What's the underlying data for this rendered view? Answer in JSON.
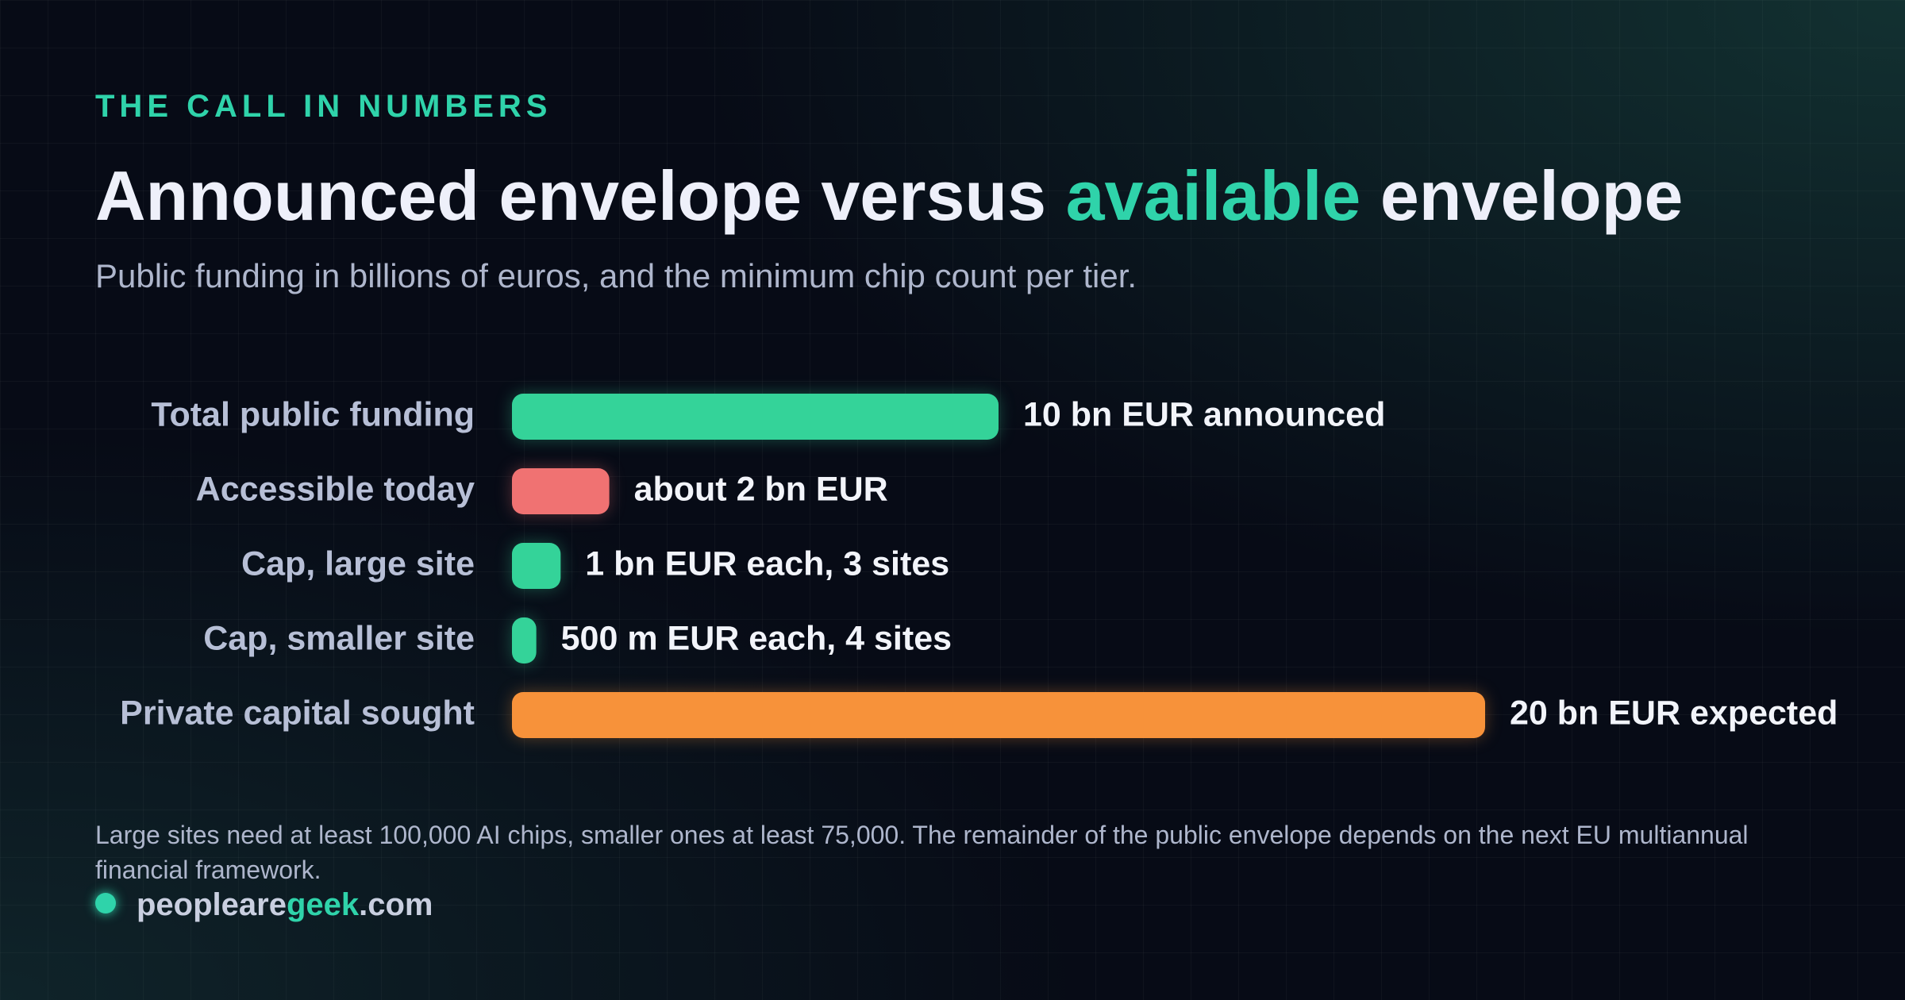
{
  "eyebrow": "THE CALL IN NUMBERS",
  "title_parts": [
    "Announced envelope versus",
    "available",
    "envelope"
  ],
  "subtitle": "Public funding in billions of euros, and the minimum chip count per tier.",
  "chart_data": {
    "type": "bar",
    "orientation": "horizontal",
    "categories": [
      "Total public funding",
      "Accessible today",
      "Cap, large site",
      "Cap, smaller site",
      "Private capital sought"
    ],
    "values": [
      10,
      2,
      1,
      0.5,
      20
    ],
    "value_labels": [
      "10 bn EUR announced",
      "about 2 bn EUR",
      "1 bn EUR each, 3 sites",
      "500 m EUR each, 4 sites",
      "20 bn EUR expected"
    ],
    "colors": [
      "#34d399",
      "#f07272",
      "#34d399",
      "#34d399",
      "#f7923a"
    ],
    "xlim": [
      0,
      20
    ]
  },
  "note": "Large sites need at least 100,000 AI chips, smaller ones at least 75,000. The remainder of the public envelope depends on the next EU multiannual financial framework.",
  "site_parts": [
    "peopleare",
    "geek",
    ".com"
  ]
}
